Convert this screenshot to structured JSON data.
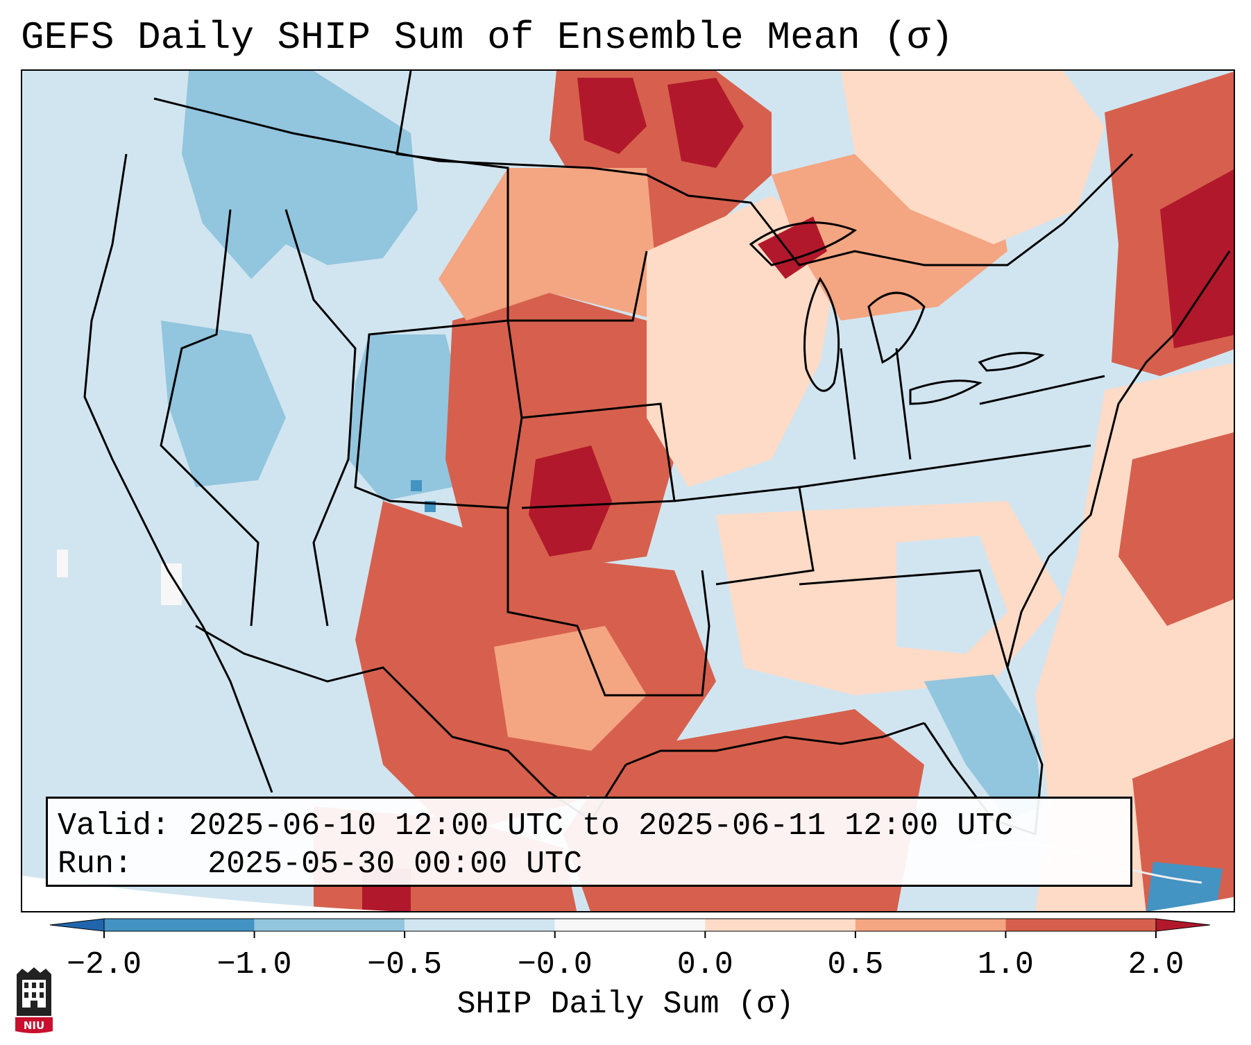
{
  "title": "GEFS Daily SHIP Sum of Ensemble Mean (σ)",
  "info": {
    "valid_label": "Valid:",
    "valid_value": "2025-06-10 12:00 UTC to 2025-06-11 12:00 UTC",
    "run_label": "Run:",
    "run_value": "2025-05-30 00:00 UTC"
  },
  "colorbar": {
    "label": "SHIP Daily Sum (σ)",
    "ticks": [
      "−2.0",
      "−1.0",
      "−0.5",
      "−0.0",
      "0.0",
      "0.5",
      "1.0",
      "2.0"
    ],
    "colors": [
      "#4393c3",
      "#92c5de",
      "#d1e5f0",
      "#f7f7f7",
      "#fddbc7",
      "#f4a582",
      "#d6604d"
    ],
    "under_color": "#2166ac",
    "over_color": "#b2182b"
  },
  "logo": {
    "name": "NIU"
  },
  "map": {
    "ocean_color": "#d1e5f0",
    "region_values": {
      "pacific_nw": -0.6,
      "northern_rockies": -0.9,
      "great_basin": -0.7,
      "colorado_plateau": -0.8,
      "northern_plains": 1.6,
      "central_plains": 1.3,
      "southern_plains": 1.4,
      "texas": 1.2,
      "upper_midwest": 0.4,
      "great_lakes": 0.6,
      "ohio_valley": -0.3,
      "southeast": -0.4,
      "florida": -0.9,
      "northeast": 1.5,
      "atlantic": 0.9,
      "gulf": 1.1,
      "ontario": 0.4
    }
  }
}
